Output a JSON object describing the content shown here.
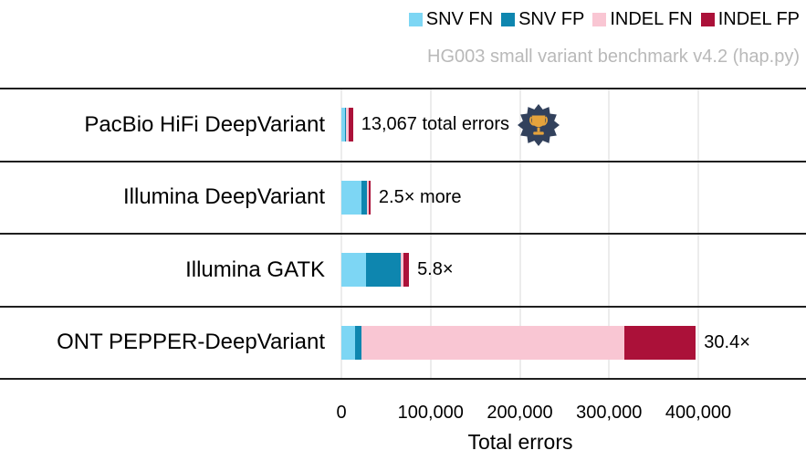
{
  "chart_data": {
    "type": "bar",
    "orientation": "horizontal-stacked",
    "subtitle": "HG003 small variant benchmark v4.2 (hap.py)",
    "xlabel": "Total errors",
    "xlim": [
      0,
      520000
    ],
    "grid": true,
    "legend_position": "top-right",
    "categories": [
      "PacBio HiFi DeepVariant",
      "Illumina DeepVariant",
      "Illumina GATK",
      "ONT PEPPER-DeepVariant"
    ],
    "series": [
      {
        "name": "SNV FN",
        "color": "#7DD6F4",
        "values": [
          3600,
          22000,
          28000,
          15000
        ]
      },
      {
        "name": "SNV FP",
        "color": "#0E86AF",
        "values": [
          1800,
          7000,
          38000,
          8000
        ]
      },
      {
        "name": "INDEL FN",
        "color": "#F9C6D3",
        "values": [
          2600,
          1800,
          4000,
          294237
        ]
      },
      {
        "name": "INDEL FP",
        "color": "#AB1139",
        "values": [
          5067,
          1868,
          5789,
          80000
        ]
      }
    ],
    "totals": [
      13067,
      32668,
      75789,
      397237
    ],
    "annotations": [
      "13,067 total errors",
      "2.5× more",
      "5.8×",
      "30.4×"
    ],
    "winner_row": 0,
    "xticks": {
      "values": [
        0,
        100000,
        200000,
        300000,
        400000
      ],
      "labels": [
        "0",
        "100,000",
        "200,000",
        "300,000",
        "400,000"
      ]
    },
    "colors": {
      "axis_line": "#1f1f1f",
      "gridline": "#ececec",
      "subtitle_text": "#b9b9b9",
      "label_text": "#000000",
      "badge_background": "#32415C",
      "badge_trophy": "#E5A33C"
    }
  }
}
